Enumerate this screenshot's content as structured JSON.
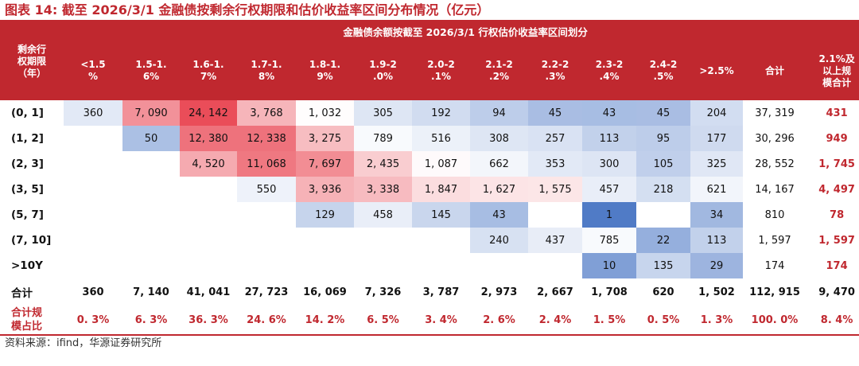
{
  "header": {
    "title": "图表 14: 截至 2026/3/1 金融债按剩余行权期限和估价收益率区间分布情况（亿元）",
    "row_axis_label": "剩余行\n权期限\n（年）",
    "span_label": "金融债余额按截至 2026/3/1 行权估价收益率区间划分",
    "columns": [
      "<1.5\n%",
      "1.5-1.\n6%",
      "1.6-1.\n7%",
      "1.7-1.\n8%",
      "1.8-1.\n9%",
      "1.9-2\n.0%",
      "2.0-2\n.1%",
      "2.1-2\n.2%",
      "2.2-2\n.3%",
      "2.3-2\n.4%",
      "2.4-2\n.5%",
      ">2.5%",
      "合计",
      "2.1%及\n以上规\n模合计"
    ]
  },
  "footer": {
    "source": "资料来源：ifind，华源证券研究所"
  },
  "colors": {
    "red": "#c0282f",
    "heat_high": "#ea4d59",
    "heat_low": "#3d6cc0",
    "white": "#ffffff"
  },
  "chart_data": {
    "type": "table",
    "title": "图表 14: 截至 2026/3/1 金融债按剩余行权期限和估价收益率区间分布情况（亿元）",
    "rows": [
      {
        "label": "(0, 1]",
        "cells": [
          "360",
          "7, 090",
          "24, 142",
          "3, 768",
          "1, 032",
          "305",
          "192",
          "94",
          "45",
          "43",
          "45",
          "204",
          "37, 319",
          "431"
        ]
      },
      {
        "label": "(1, 2]",
        "cells": [
          "",
          "50",
          "12, 380",
          "12, 338",
          "3, 275",
          "789",
          "516",
          "308",
          "257",
          "113",
          "95",
          "177",
          "30, 296",
          "949"
        ]
      },
      {
        "label": "(2, 3]",
        "cells": [
          "",
          "",
          "4, 520",
          "11, 068",
          "7, 697",
          "2, 435",
          "1, 087",
          "662",
          "353",
          "300",
          "105",
          "325",
          "28, 552",
          "1, 745"
        ]
      },
      {
        "label": "(3, 5]",
        "cells": [
          "",
          "",
          "",
          "550",
          "3, 936",
          "3, 338",
          "1, 847",
          "1, 627",
          "1, 575",
          "457",
          "218",
          "621",
          "14, 167",
          "4, 497"
        ]
      },
      {
        "label": "(5, 7]",
        "cells": [
          "",
          "",
          "",
          "",
          "129",
          "458",
          "145",
          "43",
          "",
          "1",
          "",
          "34",
          "810",
          "78"
        ]
      },
      {
        "label": "(7, 10]",
        "cells": [
          "",
          "",
          "",
          "",
          "",
          "",
          "",
          "240",
          "437",
          "785",
          "22",
          "113",
          "1, 597",
          "1, 597"
        ]
      },
      {
        "label": ">10Y",
        "cells": [
          "",
          "",
          "",
          "",
          "",
          "",
          "",
          "",
          "",
          "10",
          "135",
          "29",
          "174",
          "174"
        ]
      }
    ],
    "total_row": {
      "label": "合计",
      "cells": [
        "360",
        "7, 140",
        "41, 041",
        "27, 723",
        "16, 069",
        "7, 326",
        "3, 787",
        "2, 973",
        "2, 667",
        "1, 708",
        "620",
        "1, 502",
        "112, 915",
        "9, 470"
      ]
    },
    "share_row": {
      "label": "合计规\n模占比",
      "cells": [
        "0. 3%",
        "6. 3%",
        "36. 3%",
        "24. 6%",
        "14. 2%",
        "6. 5%",
        "3. 4%",
        "2. 6%",
        "2. 4%",
        "1. 5%",
        "0. 5%",
        "1. 3%",
        "100. 0%",
        "8. 4%"
      ]
    }
  }
}
